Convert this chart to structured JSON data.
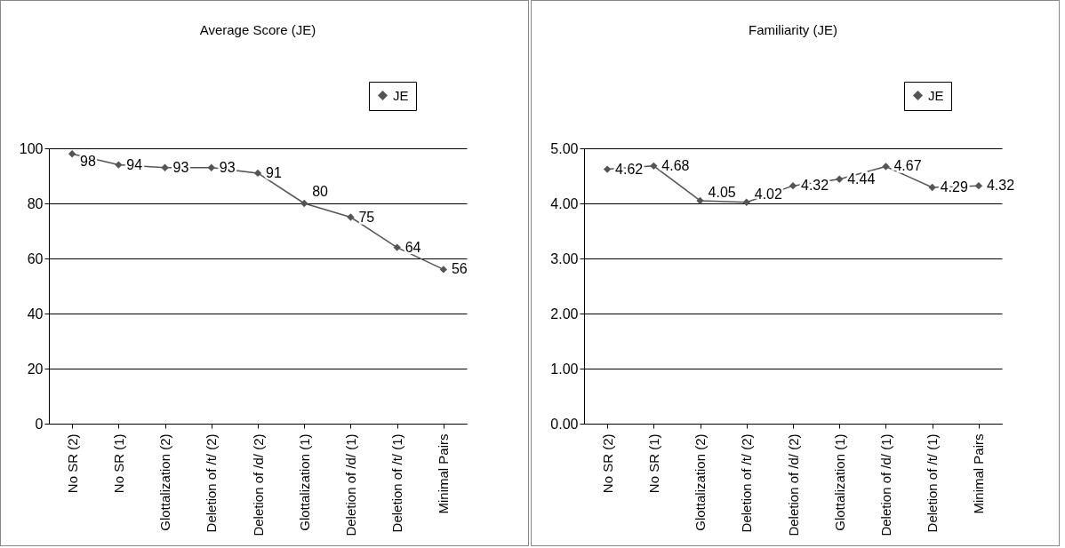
{
  "chart_data": [
    {
      "type": "line",
      "title": "Average Score (JE)",
      "categories": [
        "No SR (2)",
        "No SR (1)",
        "Glottalization (2)",
        "Deletion of /t/ (2)",
        "Deletion of /d/ (2)",
        "Glottalization (1)",
        "Deletion of /d/ (1)",
        "Deletion of /t/ (1)",
        "Minimal Pairs"
      ],
      "series": [
        {
          "name": "JE",
          "color": "#555555",
          "values": [
            98,
            94,
            93,
            93,
            91,
            80,
            75,
            64,
            56
          ]
        }
      ],
      "ylim": [
        0,
        100
      ],
      "yticks": [
        0,
        20,
        40,
        60,
        80,
        100
      ],
      "grid": "y",
      "legend": "top right",
      "marker": "diamond",
      "data_labels": true
    },
    {
      "type": "line",
      "title": "Familiarity (JE)",
      "categories": [
        "No SR (2)",
        "No SR (1)",
        "Glottalization (2)",
        "Deletion of /t/ (2)",
        "Deletion of /d/ (2)",
        "Glottalization (1)",
        "Deletion of /d/ (1)",
        "Deletion of /t/ (1)",
        "Minimal Pairs"
      ],
      "series": [
        {
          "name": "JE",
          "color": "#555555",
          "values": [
            4.62,
            4.68,
            4.05,
            4.02,
            4.32,
            4.44,
            4.67,
            4.29,
            4.32
          ]
        }
      ],
      "ylim": [
        0,
        5
      ],
      "yticks": [
        {
          "value": 0,
          "label": "0.00"
        },
        {
          "value": 1,
          "label": "1.00"
        },
        {
          "value": 2,
          "label": "2.00"
        },
        {
          "value": 3,
          "label": "3.00"
        },
        {
          "value": 4,
          "label": "4.00"
        },
        {
          "value": 5,
          "label": "5.00"
        }
      ],
      "grid": "y",
      "legend": "top right",
      "marker": "diamond",
      "data_labels": true
    }
  ]
}
